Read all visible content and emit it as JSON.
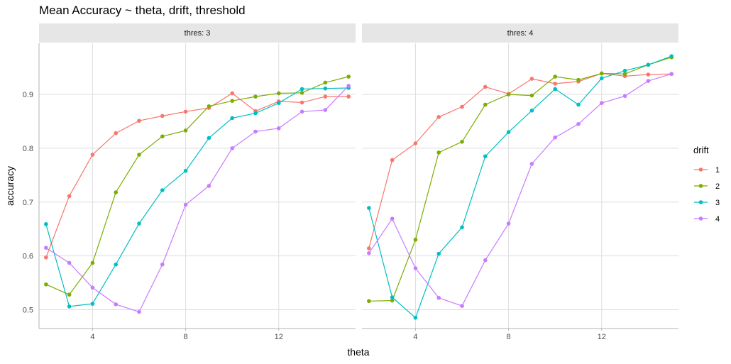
{
  "chart_data": {
    "type": "line",
    "title": "Mean Accuracy ~ theta, drift, threshold",
    "xlabel": "theta",
    "ylabel": "accuracy",
    "xlim": [
      1.7,
      15.3
    ],
    "ylim": [
      0.465,
      0.995
    ],
    "x_ticks": [
      4,
      8,
      12
    ],
    "x_tick_labels": [
      "4",
      "8",
      "12"
    ],
    "y_ticks": [
      0.5,
      0.6,
      0.7,
      0.8,
      0.9
    ],
    "y_tick_labels": [
      "0.5",
      "0.6",
      "0.7",
      "0.8",
      "0.9"
    ],
    "grid": true,
    "legend": {
      "title": "drift",
      "position": "right",
      "entries": [
        "1",
        "2",
        "3",
        "4"
      ],
      "colors": [
        "#F8766D",
        "#7CAE00",
        "#00BFC4",
        "#C77CFF"
      ]
    },
    "x": [
      2,
      3,
      4,
      5,
      6,
      7,
      8,
      9,
      10,
      11,
      12,
      13,
      14,
      15
    ],
    "panels": [
      {
        "strip": "thres: 3",
        "series": [
          {
            "name": "1",
            "values": [
              0.597,
              0.711,
              0.788,
              0.828,
              0.851,
              0.86,
              0.868,
              0.875,
              0.902,
              0.869,
              0.887,
              0.885,
              0.896,
              0.896
            ]
          },
          {
            "name": "2",
            "values": [
              0.547,
              0.528,
              0.587,
              0.718,
              0.788,
              0.822,
              0.833,
              0.878,
              0.888,
              0.896,
              0.902,
              0.903,
              0.922,
              0.933
            ]
          },
          {
            "name": "3",
            "values": [
              0.659,
              0.506,
              0.511,
              0.584,
              0.66,
              0.722,
              0.758,
              0.819,
              0.856,
              0.865,
              0.884,
              0.91,
              0.911,
              0.912
            ]
          },
          {
            "name": "4",
            "values": [
              0.615,
              0.587,
              0.541,
              0.51,
              0.496,
              0.584,
              0.695,
              0.73,
              0.8,
              0.831,
              0.837,
              0.868,
              0.871,
              0.916
            ]
          }
        ]
      },
      {
        "strip": "thres: 4",
        "series": [
          {
            "name": "1",
            "values": [
              0.614,
              0.778,
              0.809,
              0.858,
              0.877,
              0.914,
              0.901,
              0.929,
              0.92,
              0.924,
              0.939,
              0.934,
              0.937,
              0.938
            ]
          },
          {
            "name": "2",
            "values": [
              0.516,
              0.517,
              0.63,
              0.792,
              0.812,
              0.881,
              0.9,
              0.898,
              0.933,
              0.927,
              0.939,
              0.938,
              0.955,
              0.969
            ]
          },
          {
            "name": "3",
            "values": [
              0.689,
              0.523,
              0.485,
              0.604,
              0.653,
              0.785,
              0.83,
              0.87,
              0.91,
              0.881,
              0.93,
              0.944,
              0.955,
              0.971
            ]
          },
          {
            "name": "4",
            "values": [
              0.605,
              0.669,
              0.577,
              0.522,
              0.507,
              0.592,
              0.66,
              0.771,
              0.82,
              0.845,
              0.884,
              0.897,
              0.925,
              0.938
            ]
          }
        ]
      }
    ]
  }
}
